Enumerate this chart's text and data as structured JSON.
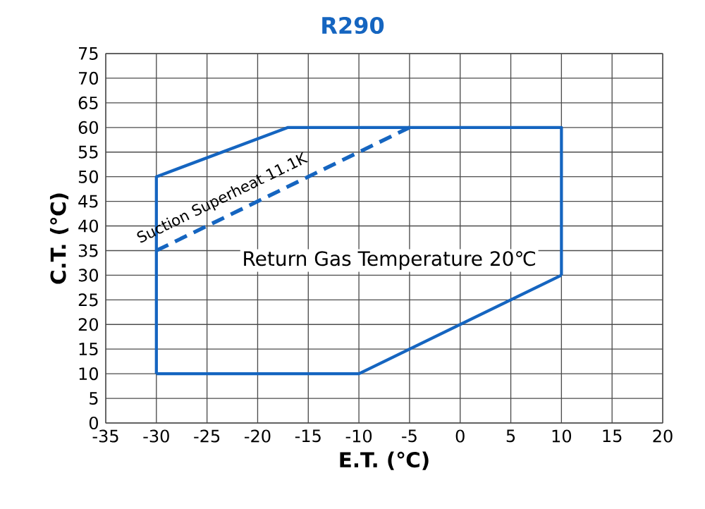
{
  "chart_data": {
    "type": "line",
    "title": "R290",
    "xlabel": "E.T. (℃)",
    "ylabel": "C.T. (℃)",
    "xlim": [
      -35,
      20
    ],
    "ylim": [
      0,
      75
    ],
    "xticks": [
      -35,
      -30,
      -25,
      -20,
      -15,
      -10,
      -5,
      0,
      5,
      10,
      15,
      20
    ],
    "yticks": [
      0,
      5,
      10,
      15,
      20,
      25,
      30,
      35,
      40,
      45,
      50,
      55,
      60,
      65,
      70,
      75
    ],
    "grid": true,
    "marker": "none",
    "series": [
      {
        "color": "#1565c0",
        "line_style": "dashed",
        "x": [
          -30,
          -5
        ],
        "values": [
          35,
          60
        ]
      },
      {
        "color": "#1565c0",
        "line_style": "solid",
        "x": [
          -30,
          -30,
          -17,
          10,
          10
        ],
        "values": [
          10,
          50,
          60,
          60,
          30
        ]
      },
      {
        "color": "#1565c0",
        "line_style": "solid",
        "x": [
          -30,
          -10,
          10
        ],
        "values": [
          10,
          10,
          30
        ]
      }
    ],
    "annotations": [
      "Suction Superheat 11.1K",
      "Return Gas Temperature 20℃"
    ]
  }
}
